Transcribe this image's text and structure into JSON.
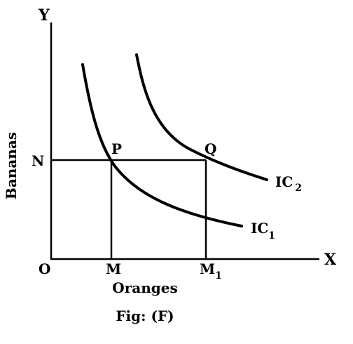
{
  "axes": {
    "y_label": "Y",
    "x_label": "X",
    "origin_label": "O",
    "y_title": "Bananas",
    "x_title": "Oranges"
  },
  "ticks": {
    "x1": "M",
    "x2_base": "M",
    "x2_sub": "1",
    "y1": "N"
  },
  "points": {
    "p": "P",
    "q": "Q"
  },
  "curves": {
    "ic1_base": "IC",
    "ic1_sub": "1",
    "ic2_base": "IC",
    "ic2_sub": "2"
  },
  "caption": "Fig: (F)"
}
